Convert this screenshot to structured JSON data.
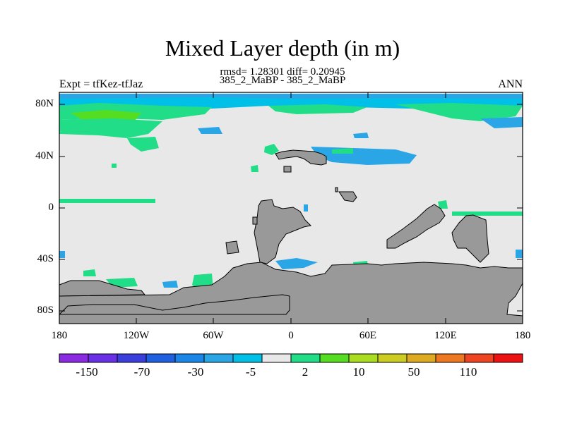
{
  "title": "Mixed Layer depth (in m)",
  "subtitle_stats": "rmsd= 1.28301 diff= 0.20945",
  "subtitle_cases": "385_2_MaBP - 385_2_MaBP",
  "left_label": "Expt = tfKez-tfJaz",
  "right_label": "ANN",
  "lat_ticks": [
    "80N",
    "40N",
    "0",
    "40S",
    "80S"
  ],
  "lon_ticks": [
    "180",
    "120W",
    "60W",
    "0",
    "60E",
    "120E",
    "180"
  ],
  "colorbar": {
    "colors": [
      "#8a2be2",
      "#6a30e6",
      "#3a3fdc",
      "#1f5fe0",
      "#1c86e8",
      "#2aa6e6",
      "#00c0e8",
      "#e8e8e8",
      "#22dd88",
      "#55dd22",
      "#aadd22",
      "#cccc22",
      "#ddaa22",
      "#ee7722",
      "#ee4422",
      "#ee1111"
    ],
    "labels": [
      "-150",
      "-70",
      "-30",
      "-5",
      "2",
      "10",
      "50",
      "110"
    ]
  },
  "land_color": "#999999",
  "ocean_color": "#e8e8e8"
}
